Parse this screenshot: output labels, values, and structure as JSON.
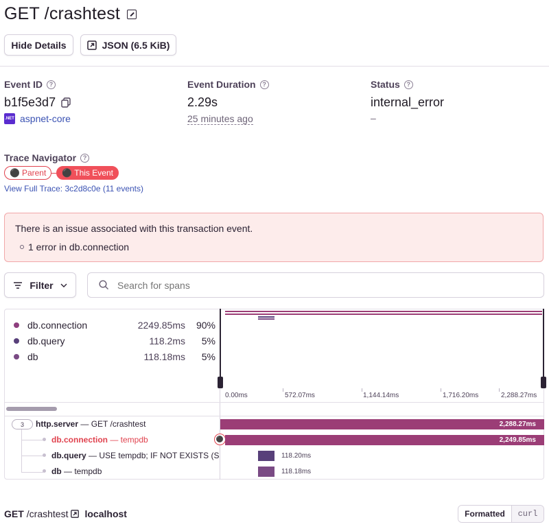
{
  "header": {
    "title": "GET /crashtest",
    "hide_details": "Hide Details",
    "json_button": "JSON (6.5 KiB)"
  },
  "meta": {
    "event_id_label": "Event ID",
    "event_id": "b1f5e3d7",
    "sdk_badge": ".NET",
    "sdk": "aspnet-core",
    "duration_label": "Event Duration",
    "duration": "2.29s",
    "time_ago": "25 minutes ago",
    "status_label": "Status",
    "status": "internal_error",
    "status_sub": "–"
  },
  "trace": {
    "label": "Trace Navigator",
    "parent": "Parent",
    "this_event": "This Event",
    "full_trace": "View Full Trace: 3c2d8c0e (11 events)"
  },
  "alert": {
    "message": "There is an issue associated with this transaction event.",
    "item": "1 error in db.connection"
  },
  "filter": {
    "label": "Filter",
    "search_placeholder": "Search for spans"
  },
  "ops": [
    {
      "name": "db.connection",
      "duration": "2249.85ms",
      "percent": "90%",
      "color": "#8e3f7e"
    },
    {
      "name": "db.query",
      "duration": "118.2ms",
      "percent": "5%",
      "color": "#58407a"
    },
    {
      "name": "db",
      "duration": "118.18ms",
      "percent": "5%",
      "color": "#7a4a84"
    }
  ],
  "axis_ticks": [
    "0.00ms",
    "572.07ms",
    "1,144.14ms",
    "1,716.20ms",
    "2,288.27ms"
  ],
  "spans": [
    {
      "count": "3",
      "op": "http.server",
      "desc": "— GET /crashtest",
      "duration": "2,288.27ms",
      "color": "#9b3d76"
    },
    {
      "op": "db.connection",
      "desc": "— tempdb",
      "duration": "2,249.85ms",
      "color": "#9b3d76"
    },
    {
      "op": "db.query",
      "desc": "— USE tempdb; IF NOT EXISTS (SELE",
      "duration": "118.20ms",
      "color": "#58407a"
    },
    {
      "op": "db",
      "desc": "— tempdb",
      "duration": "118.18ms",
      "color": "#7a4a84"
    }
  ],
  "request": {
    "method": "GET",
    "path": "/crashtest",
    "host": "localhost",
    "formatted": "Formatted",
    "curl": "curl"
  }
}
